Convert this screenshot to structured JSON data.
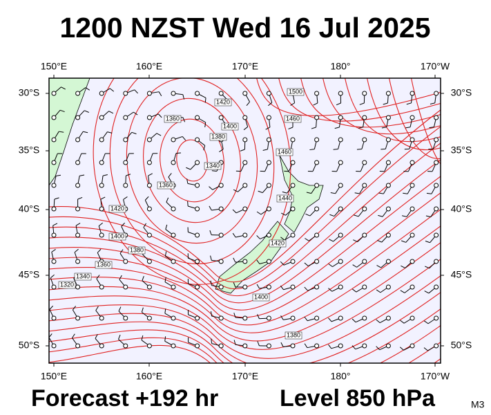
{
  "title": "1200 NZST Wed 16 Jul 2025",
  "footer": {
    "forecast": "Forecast +192 hr",
    "level": "Level 850 hPa",
    "model": "M3"
  },
  "map": {
    "lon_labels": [
      "150°E",
      "160°E",
      "170°E",
      "180°",
      "170°W"
    ],
    "lat_labels": [
      "30°S",
      "35°S",
      "40°S",
      "45°S",
      "50°S"
    ],
    "contour_labels": [
      "1420",
      "1400",
      "1380",
      "1360",
      "1340",
      "1360",
      "1380",
      "1400",
      "1420",
      "1360",
      "1340",
      "1320",
      "1500",
      "1460",
      "1460",
      "1440",
      "1420",
      "1400",
      "1380"
    ]
  }
}
